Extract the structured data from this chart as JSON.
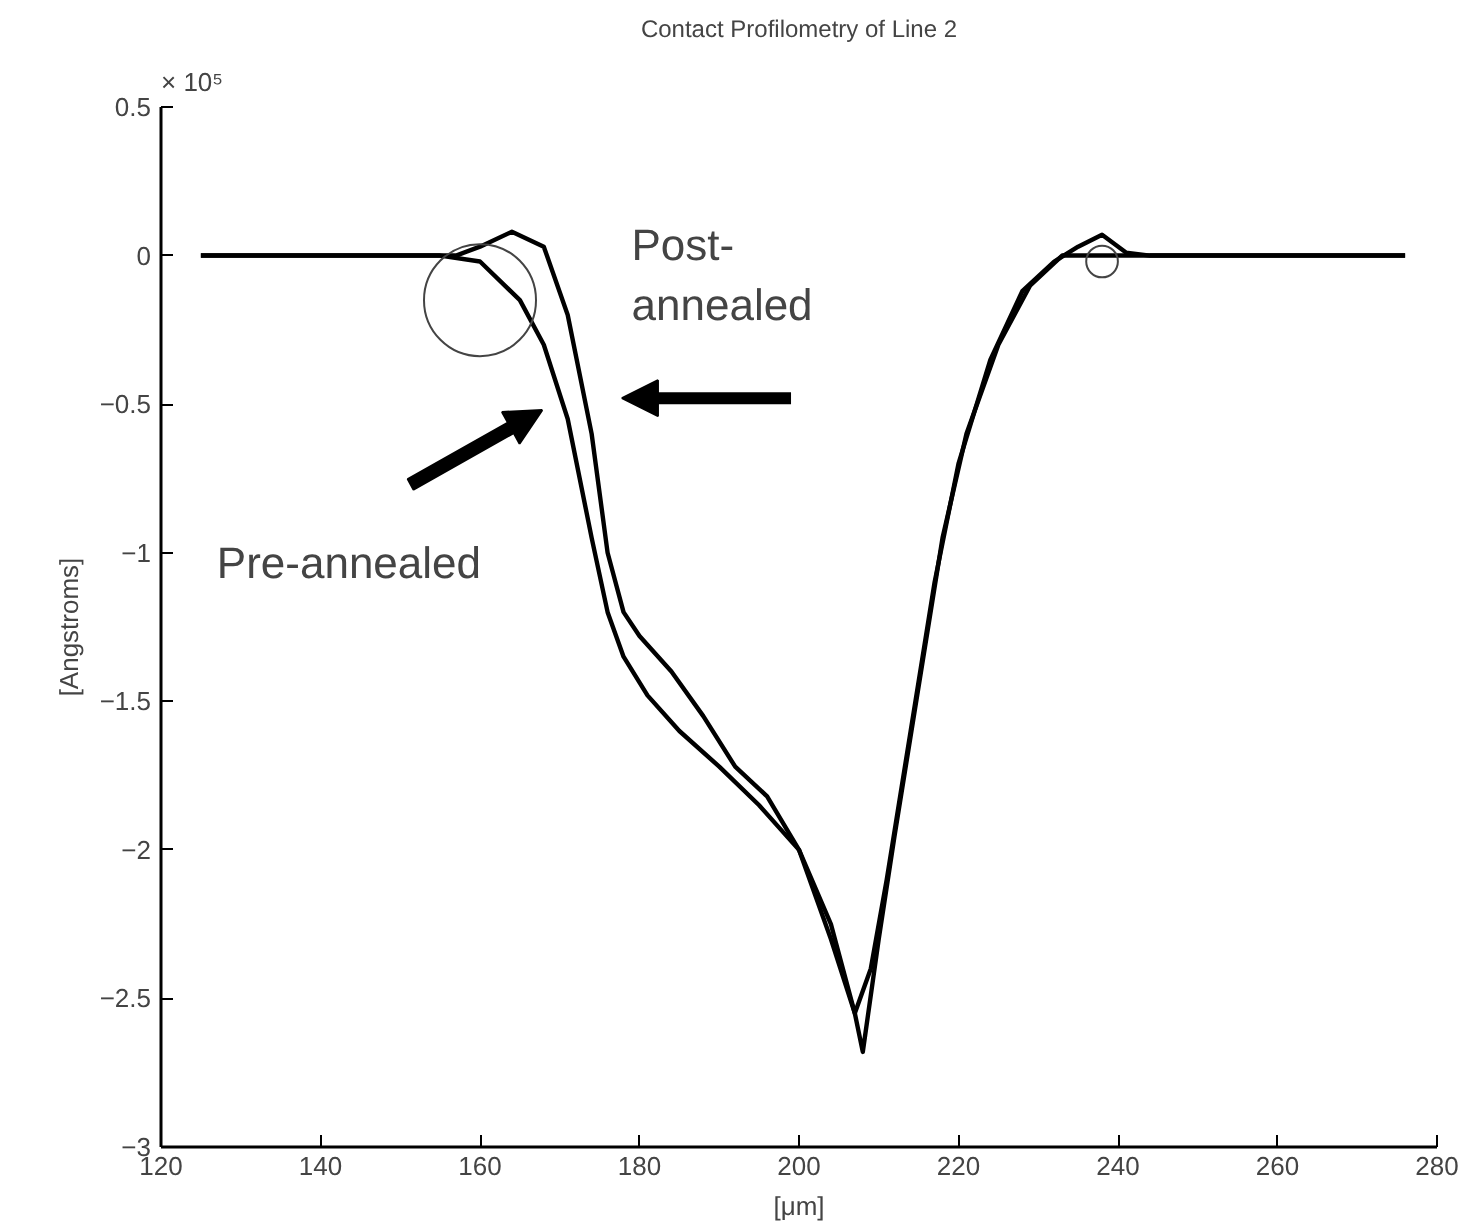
{
  "chart_data": {
    "type": "line",
    "title": "Contact Profilometry of Line 2",
    "xlabel": "[μm]",
    "ylabel": "[Angstroms]",
    "xlim": [
      120,
      280
    ],
    "xticks": [
      120,
      140,
      160,
      180,
      200,
      220,
      240,
      260,
      280
    ],
    "ylim": [
      -3,
      0.5
    ],
    "yticks": [
      -3,
      -2.5,
      -2,
      -1.5,
      -1,
      -0.5,
      0,
      0.5
    ],
    "grid": false,
    "line_style": "solid",
    "annotations": [
      "× 10⁵"
    ],
    "series": [
      {
        "name": "Pre-annealed",
        "color": "#000000",
        "x": [
          125,
          140,
          155,
          160,
          165,
          168,
          171,
          174,
          176,
          178,
          181,
          185,
          190,
          195,
          200,
          204,
          207,
          208,
          210,
          212,
          215,
          218,
          221,
          225,
          229,
          233,
          238,
          250,
          260,
          276
        ],
        "values": [
          0,
          0,
          0,
          -0.02,
          -0.15,
          -0.3,
          -0.55,
          -0.95,
          -1.2,
          -1.35,
          -1.48,
          -1.6,
          -1.72,
          -1.85,
          -2.0,
          -2.25,
          -2.55,
          -2.68,
          -2.3,
          -1.95,
          -1.45,
          -0.95,
          -0.6,
          -0.3,
          -0.1,
          0,
          0,
          0,
          0,
          0
        ]
      },
      {
        "name": "Post-annealed",
        "color": "#000000",
        "x": [
          125,
          140,
          157,
          160,
          164,
          168,
          171,
          174,
          176,
          178,
          180,
          184,
          188,
          192,
          196,
          200,
          204,
          207,
          209,
          211,
          214,
          217,
          220,
          224,
          228,
          232,
          235,
          238,
          241,
          244,
          260,
          276
        ],
        "values": [
          0,
          0,
          0,
          0.03,
          0.08,
          0.03,
          -0.2,
          -0.6,
          -1.0,
          -1.2,
          -1.28,
          -1.4,
          -1.55,
          -1.72,
          -1.82,
          -2.0,
          -2.3,
          -2.55,
          -2.4,
          -2.1,
          -1.6,
          -1.1,
          -0.7,
          -0.35,
          -0.12,
          -0.02,
          0.03,
          0.07,
          0.01,
          0,
          0,
          0
        ]
      },
      {
        "type": "bubble",
        "marker": "circle",
        "color": "#444444",
        "x": [
          160,
          238
        ],
        "values": [
          -0.15,
          -0.02
        ],
        "sizes": [
          1,
          0.08
        ]
      }
    ]
  }
}
